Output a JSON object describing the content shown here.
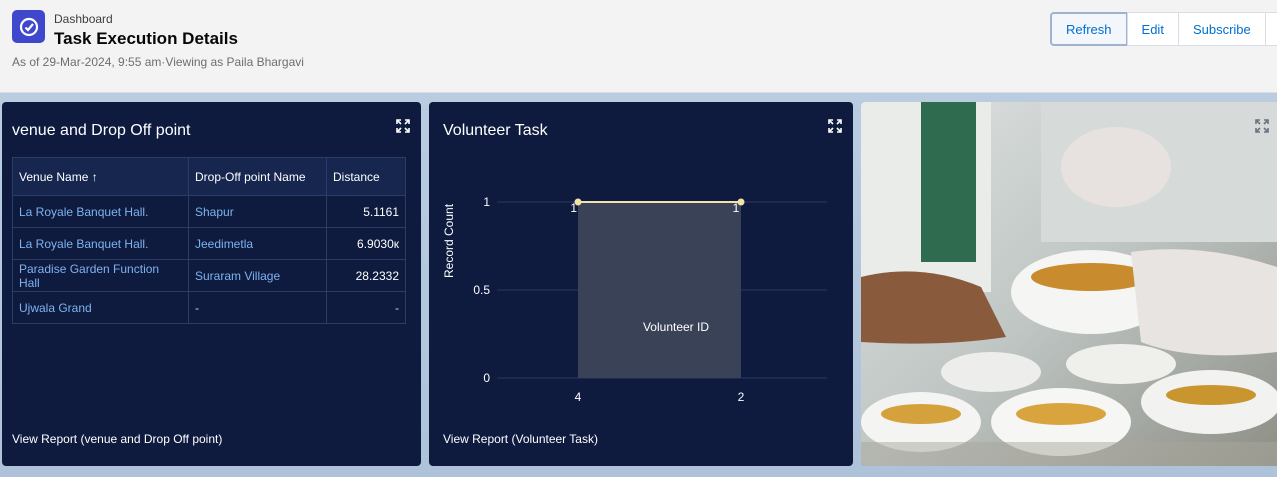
{
  "header": {
    "breadcrumb": "Dashboard",
    "title": "Task Execution Details",
    "subtitle": "As of 29-Mar-2024, 9:55 am·Viewing as Paila Bhargavi",
    "buttons": {
      "refresh": "Refresh",
      "edit": "Edit",
      "subscribe": "Subscribe",
      "more": "▼"
    }
  },
  "venue_card": {
    "title": "venue and Drop Off point",
    "columns": {
      "venue": "Venue Name ↑",
      "dropoff": "Drop-Off point Name",
      "distance": "Distance"
    },
    "rows": [
      {
        "venue": "La Royale Banquet Hall.",
        "dropoff": "Shapur",
        "distance": "5.1161"
      },
      {
        "venue": "La Royale Banquet Hall.",
        "dropoff": "Jeedimetla",
        "distance": "6.9030к"
      },
      {
        "venue": "Paradise Garden Function Hall",
        "dropoff": "Suraram Village",
        "distance": "28.2332"
      },
      {
        "venue": "Ujwala Grand",
        "dropoff": "-",
        "distance": "-"
      }
    ],
    "footer": "View Report (venue and Drop Off point)"
  },
  "volunteer_card": {
    "title": "Volunteer Task",
    "footer": "View Report (Volunteer Task)"
  },
  "chart_data": {
    "type": "line",
    "title": "Volunteer Task",
    "xlabel": "Volunteer ID",
    "ylabel": "Record Count",
    "categories": [
      "4",
      "2"
    ],
    "values": [
      1,
      1
    ],
    "data_labels": [
      "1",
      "1"
    ],
    "yticks": [
      "0",
      "0.5",
      "1"
    ],
    "ylim": [
      0,
      1
    ],
    "line_color": "#f2e4a6",
    "area_color": "#3a4258"
  },
  "colors": {
    "card_bg": "#0e1b3f",
    "brand": "#3f48cc",
    "link": "#7fb2ee"
  }
}
